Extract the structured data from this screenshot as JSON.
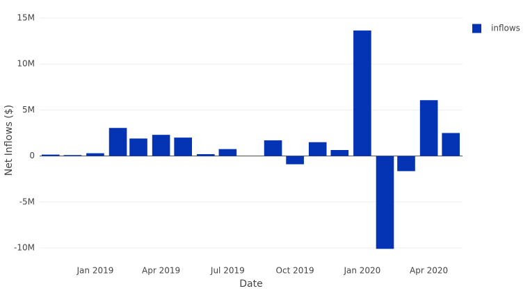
{
  "chart_data": {
    "type": "bar",
    "x_title": "Date",
    "y_title": "Net Inflows ($)",
    "x": [
      "2018-11",
      "2018-12",
      "2019-01",
      "2019-02",
      "2019-03",
      "2019-04",
      "2019-05",
      "2019-06",
      "2019-07",
      "2019-08",
      "2019-09",
      "2019-10",
      "2019-11",
      "2019-12",
      "2020-01",
      "2020-02",
      "2020-03",
      "2020-04",
      "2020-05"
    ],
    "series": [
      {
        "name": "inflows",
        "color": "#0433b3",
        "values": [
          150000,
          100000,
          300000,
          3050000,
          1900000,
          2300000,
          2000000,
          200000,
          750000,
          0,
          1700000,
          -900000,
          1500000,
          650000,
          13650000,
          -10100000,
          -1650000,
          6070000,
          2500000
        ]
      }
    ],
    "xlim": [
      "2018-10-17",
      "2020-05-17"
    ],
    "xticks": [
      {
        "value": "2019-01",
        "label": "Jan 2019"
      },
      {
        "value": "2019-04",
        "label": "Apr 2019"
      },
      {
        "value": "2019-07",
        "label": "Jul 2019"
      },
      {
        "value": "2019-10",
        "label": "Oct 2019"
      },
      {
        "value": "2020-01",
        "label": "Jan 2020"
      },
      {
        "value": "2020-04",
        "label": "Apr 2020"
      }
    ],
    "ylim": [
      -10500000,
      15500000
    ],
    "yticks": [
      {
        "value": -10000000,
        "label": "-10M"
      },
      {
        "value": -5000000,
        "label": "-5M"
      },
      0,
      {
        "value": 5000000,
        "label": "5M"
      },
      {
        "value": 10000000,
        "label": "10M"
      },
      {
        "value": 15000000,
        "label": "15M"
      }
    ],
    "grid": true,
    "legend": "top-right"
  }
}
